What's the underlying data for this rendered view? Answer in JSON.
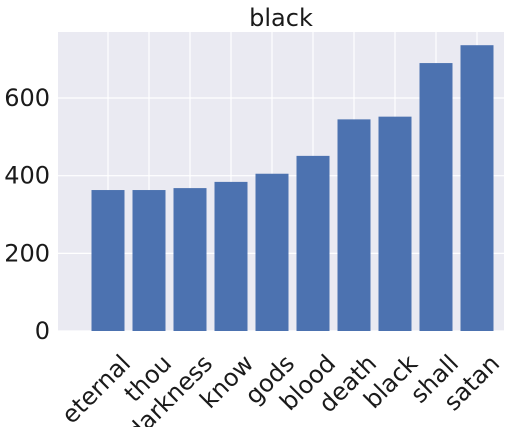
{
  "chart_data": {
    "type": "bar",
    "title": "black",
    "xlabel": "",
    "ylabel": "",
    "categories": [
      "eternal",
      "thou",
      "darkness",
      "know",
      "gods",
      "blood",
      "death",
      "black",
      "shall",
      "satan"
    ],
    "values": [
      363,
      363,
      368,
      384,
      405,
      451,
      545,
      552,
      690,
      736
    ],
    "ylim": [
      0,
      770
    ],
    "yticks": [
      0,
      200,
      400,
      600
    ],
    "grid": true,
    "bar_color": "#4c72b0",
    "background_color": "#eaeaf2",
    "grid_color": "#ffffff"
  }
}
